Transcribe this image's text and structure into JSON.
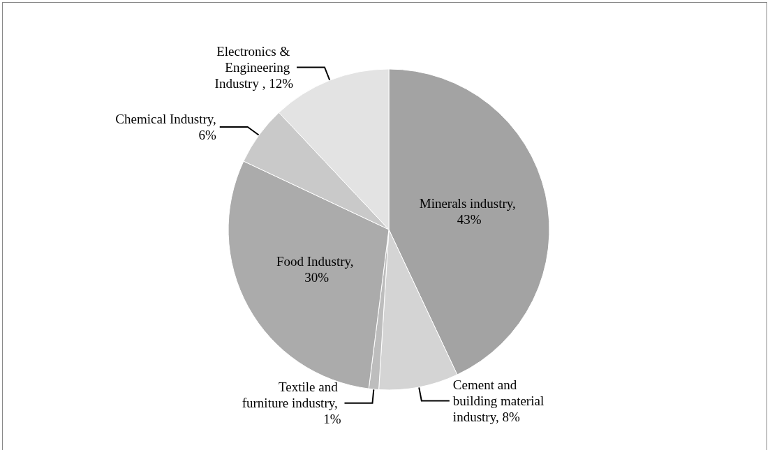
{
  "chart_data": {
    "type": "pie",
    "categories": [
      "Minerals industry",
      "Cement and building material industry",
      "Textile and furniture industry",
      "Food Industry",
      "Chemical Industry",
      "Electronics & Engineering Industry"
    ],
    "value_labels": [
      ", 43%",
      ", 8%",
      ", 1%",
      ", 30%",
      ", 6%",
      " , 12%"
    ],
    "values": [
      43,
      8,
      1,
      30,
      6,
      12
    ],
    "colors": [
      "#a3a3a3",
      "#d4d4d4",
      "#bdbdbd",
      "#ababab",
      "#c9c9c9",
      "#e3e3e3"
    ],
    "legend": false
  }
}
